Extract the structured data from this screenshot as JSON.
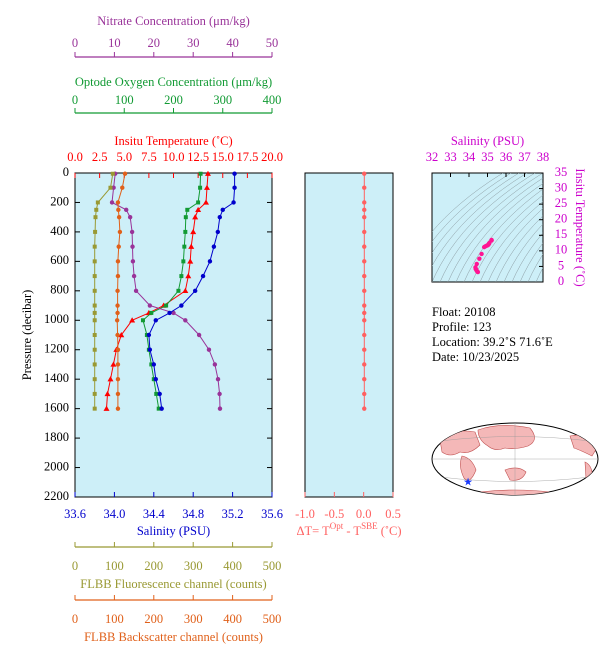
{
  "chart_data": [
    {
      "type": "line",
      "y_label": "Pressure (decibar)",
      "ylim": [
        0,
        2200
      ],
      "y_inverted": true,
      "yticks": [
        0,
        200,
        400,
        600,
        800,
        1000,
        1200,
        1400,
        1600,
        1800,
        2000,
        2200
      ],
      "pressure": [
        5,
        100,
        200,
        250,
        300,
        400,
        500,
        600,
        700,
        800,
        900,
        950,
        1000,
        1100,
        1200,
        1300,
        1400,
        1500,
        1600
      ],
      "axes": [
        {
          "label": "Insitu Temperature (˚C)",
          "side": "top",
          "color": "#ff0000",
          "marker": "triangle",
          "xlim": [
            0,
            20
          ],
          "xticks": [
            {
              "value": 0,
              "label": "0.0"
            },
            2.5,
            {
              "value": 5,
              "label": "5.0"
            },
            7.5,
            {
              "value": 10,
              "label": "10.0"
            },
            12.5,
            {
              "value": 15,
              "label": "15.0"
            },
            17.5,
            {
              "value": 20,
              "label": "20.0"
            }
          ],
          "values": [
            13.5,
            13.4,
            13.3,
            12.5,
            12.2,
            12.0,
            11.8,
            11.7,
            11.5,
            11.2,
            9.0,
            7.5,
            5.8,
            4.7,
            4.2,
            3.9,
            3.6,
            3.3,
            3.2
          ]
        },
        {
          "label": "Optode Oxygen Concentration (μm/kg)",
          "side": "top",
          "color": "#119a33",
          "marker": "square",
          "xlim": [
            0,
            400
          ],
          "xticks": [
            0,
            100,
            200,
            300,
            400
          ],
          "values": [
            255,
            254,
            250,
            228,
            225,
            224,
            222,
            220,
            216,
            210,
            185,
            155,
            138,
            146,
            150,
            155,
            160,
            165,
            170
          ]
        },
        {
          "label": "Nitrate Concentration (μm/kg)",
          "side": "top",
          "color": "#993399",
          "marker": "circle",
          "xlim": [
            0,
            50
          ],
          "xticks": [
            0,
            10,
            20,
            30,
            40,
            50
          ],
          "values": [
            10.2,
            9.8,
            9.4,
            13.0,
            14.0,
            14.5,
            14.6,
            14.7,
            15.0,
            15.5,
            19,
            25,
            28,
            31.5,
            34,
            35.5,
            36.3,
            36.7,
            36.8
          ]
        },
        {
          "label": "Salinity (PSU)",
          "side": "bottom",
          "color": "#0000cc",
          "marker": "circle",
          "xlim": [
            33.6,
            35.6
          ],
          "xticks": [
            33.6,
            {
              "value": 34,
              "label": "34.0"
            },
            34.4,
            34.8,
            35.2,
            35.6
          ],
          "values": [
            35.22,
            35.22,
            35.21,
            35.1,
            35.07,
            35.05,
            35.01,
            34.97,
            34.9,
            34.82,
            34.68,
            34.56,
            34.42,
            34.35,
            34.36,
            34.4,
            34.42,
            34.46,
            34.48
          ]
        },
        {
          "label": "FLBB Fluorescence channel (counts)",
          "side": "bottom",
          "color": "#999933",
          "marker": "square",
          "xlim": [
            0,
            500
          ],
          "xticks": [
            0,
            100,
            200,
            300,
            400,
            500
          ],
          "values": [
            96,
            90,
            58,
            54,
            52,
            51,
            50,
            50,
            50,
            50,
            50,
            50,
            50,
            50,
            50,
            50,
            50,
            50,
            50
          ]
        },
        {
          "label": "FLBB Backscatter channel (counts)",
          "side": "bottom",
          "color": "#e0601a",
          "marker": "circle",
          "xlim": [
            0,
            500
          ],
          "xticks": [
            0,
            100,
            200,
            300,
            400,
            500
          ],
          "values": [
            127,
            120,
            109,
            110,
            112,
            114,
            111,
            109,
            109,
            108,
            108,
            108,
            107,
            108,
            109,
            109,
            109,
            109,
            109
          ]
        }
      ]
    },
    {
      "type": "line",
      "ylim": [
        0,
        2200
      ],
      "y_inverted": true,
      "pressure": [
        5,
        100,
        200,
        250,
        300,
        400,
        500,
        600,
        700,
        800,
        900,
        950,
        1000,
        1100,
        1200,
        1300,
        1400,
        1500,
        1600
      ],
      "axes": [
        {
          "label": [
            "ΔT= T",
            "Opt",
            " - T",
            "SBE",
            " (˚C)"
          ],
          "side": "bottom",
          "color": "#ff6060",
          "marker": "circle",
          "xlim": [
            -1,
            0.5
          ],
          "xticks": [
            {
              "value": -1,
              "label": "-1.0"
            },
            -0.5,
            {
              "value": 0,
              "label": "0.0"
            },
            0.5
          ],
          "values": [
            0.01,
            0.01,
            0.01,
            0.01,
            0.01,
            0.01,
            0.01,
            0.01,
            0.01,
            0.01,
            0.01,
            0.01,
            0.01,
            0.01,
            0.01,
            0.01,
            0.01,
            0.01,
            0.01
          ]
        }
      ]
    },
    {
      "type": "scatter",
      "x_label": "Salinity (PSU)",
      "y_label": "Insitu Temperature (˚C)",
      "label_color": "#cc00cc",
      "color": "#ff1493",
      "xlim": [
        32,
        38
      ],
      "xticks": [
        32,
        33,
        34,
        35,
        36,
        37,
        38
      ],
      "ylim": [
        0,
        35
      ],
      "yticks": [
        0,
        5,
        10,
        15,
        20,
        25,
        30,
        35
      ],
      "x": [
        35.22,
        35.22,
        35.21,
        35.1,
        35.07,
        35.05,
        35.01,
        34.97,
        34.9,
        34.82,
        34.68,
        34.56,
        34.42,
        34.35,
        34.36,
        34.4,
        34.42,
        34.46,
        34.48
      ],
      "values": [
        13.5,
        13.4,
        13.3,
        12.5,
        12.2,
        12.0,
        11.8,
        11.7,
        11.5,
        11.2,
        9.0,
        7.5,
        5.8,
        4.7,
        4.2,
        3.9,
        3.6,
        3.3,
        3.2
      ]
    }
  ],
  "info": {
    "lines": [
      "Float:  20108",
      "Profile:  123",
      "Location:  39.2˚S  71.6˚E",
      "Date:  10/23/2025"
    ]
  }
}
